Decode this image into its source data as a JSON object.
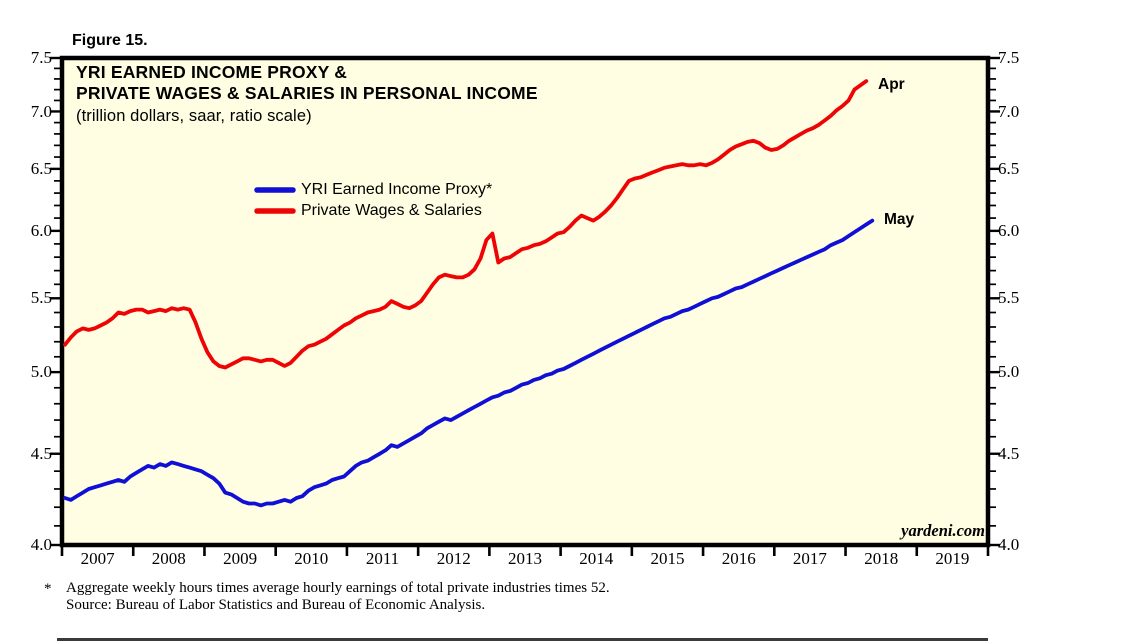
{
  "figure_label": "Figure 15.",
  "title": {
    "line1": "YRI EARNED INCOME PROXY &",
    "line2": "PRIVATE WAGES & SALARIES IN PERSONAL INCOME",
    "subtitle": "(trillion dollars, saar, ratio scale)"
  },
  "watermark": "yardeni.com",
  "footnote": {
    "marker": "*",
    "line1": "Aggregate weekly hours times average hourly earnings of total private industries times 52.",
    "line2": "Source: Bureau of Labor Statistics and Bureau of Economic Analysis."
  },
  "colors": {
    "blue": "#0f0fd6",
    "red": "#ee0404",
    "plot_bg": "#fffee2",
    "frame": "#000000"
  },
  "chart_data": {
    "type": "line",
    "y_scale": "log",
    "ylim": [
      4.0,
      7.5
    ],
    "y_major_tick_labels": [
      "4.0",
      "4.5",
      "5.0",
      "5.5",
      "6.0",
      "6.5",
      "7.0",
      "7.5"
    ],
    "y_minor_step": 0.1,
    "x_year_labels": [
      "2007",
      "2008",
      "2009",
      "2010",
      "2011",
      "2012",
      "2013",
      "2014",
      "2015",
      "2016",
      "2017",
      "2018",
      "2019"
    ],
    "x_axis_span_years": 13,
    "x_unit": "month",
    "start_month": "2007-01",
    "grid": "off",
    "legend_position": "inside upper-left area",
    "series": [
      {
        "name": "YRI Earned Income Proxy*",
        "color_key": "blue",
        "end_label": "May",
        "end_month": "2018-05",
        "values": [
          4.25,
          4.24,
          4.26,
          4.28,
          4.3,
          4.31,
          4.32,
          4.33,
          4.34,
          4.35,
          4.34,
          4.37,
          4.39,
          4.41,
          4.43,
          4.42,
          4.44,
          4.43,
          4.45,
          4.44,
          4.43,
          4.42,
          4.41,
          4.4,
          4.38,
          4.36,
          4.33,
          4.28,
          4.27,
          4.25,
          4.23,
          4.22,
          4.22,
          4.21,
          4.22,
          4.22,
          4.23,
          4.24,
          4.23,
          4.25,
          4.26,
          4.29,
          4.31,
          4.32,
          4.33,
          4.35,
          4.36,
          4.37,
          4.4,
          4.43,
          4.45,
          4.46,
          4.48,
          4.5,
          4.52,
          4.55,
          4.54,
          4.56,
          4.58,
          4.6,
          4.62,
          4.65,
          4.67,
          4.69,
          4.71,
          4.7,
          4.72,
          4.74,
          4.76,
          4.78,
          4.8,
          4.82,
          4.84,
          4.85,
          4.87,
          4.88,
          4.9,
          4.92,
          4.93,
          4.95,
          4.96,
          4.98,
          4.99,
          5.01,
          5.02,
          5.04,
          5.06,
          5.08,
          5.1,
          5.12,
          5.14,
          5.16,
          5.18,
          5.2,
          5.22,
          5.24,
          5.26,
          5.28,
          5.3,
          5.32,
          5.34,
          5.36,
          5.37,
          5.39,
          5.41,
          5.42,
          5.44,
          5.46,
          5.48,
          5.5,
          5.51,
          5.53,
          5.55,
          5.57,
          5.58,
          5.6,
          5.62,
          5.64,
          5.66,
          5.68,
          5.7,
          5.72,
          5.74,
          5.76,
          5.78,
          5.8,
          5.82,
          5.84,
          5.86,
          5.89,
          5.91,
          5.93,
          5.96,
          5.99,
          6.02,
          6.05,
          6.08
        ]
      },
      {
        "name": "Private Wages & Salaries",
        "color_key": "red",
        "end_label": "Apr",
        "end_month": "2018-04",
        "values": [
          5.18,
          5.23,
          5.27,
          5.29,
          5.28,
          5.29,
          5.31,
          5.33,
          5.36,
          5.4,
          5.39,
          5.41,
          5.42,
          5.42,
          5.4,
          5.41,
          5.42,
          5.41,
          5.43,
          5.42,
          5.43,
          5.42,
          5.33,
          5.22,
          5.13,
          5.07,
          5.04,
          5.03,
          5.05,
          5.07,
          5.09,
          5.09,
          5.08,
          5.07,
          5.08,
          5.08,
          5.06,
          5.04,
          5.06,
          5.1,
          5.14,
          5.17,
          5.18,
          5.2,
          5.22,
          5.25,
          5.28,
          5.31,
          5.33,
          5.36,
          5.38,
          5.4,
          5.41,
          5.42,
          5.44,
          5.48,
          5.46,
          5.44,
          5.43,
          5.45,
          5.48,
          5.54,
          5.6,
          5.65,
          5.67,
          5.66,
          5.65,
          5.65,
          5.67,
          5.71,
          5.79,
          5.93,
          5.98,
          5.76,
          5.79,
          5.8,
          5.83,
          5.86,
          5.87,
          5.89,
          5.9,
          5.92,
          5.95,
          5.98,
          5.99,
          6.03,
          6.08,
          6.12,
          6.1,
          6.08,
          6.11,
          6.15,
          6.2,
          6.26,
          6.33,
          6.4,
          6.42,
          6.43,
          6.45,
          6.47,
          6.49,
          6.51,
          6.52,
          6.53,
          6.54,
          6.53,
          6.53,
          6.54,
          6.53,
          6.55,
          6.58,
          6.62,
          6.66,
          6.69,
          6.71,
          6.73,
          6.74,
          6.72,
          6.68,
          6.66,
          6.67,
          6.7,
          6.74,
          6.77,
          6.8,
          6.83,
          6.85,
          6.88,
          6.92,
          6.96,
          7.01,
          7.05,
          7.1,
          7.2,
          7.24,
          7.28
        ]
      }
    ]
  }
}
